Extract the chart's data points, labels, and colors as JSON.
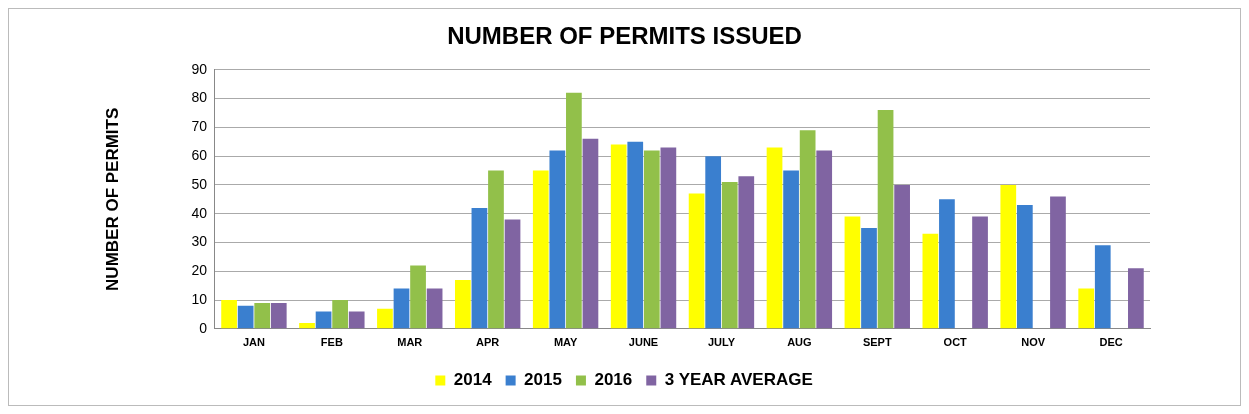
{
  "chart_data": {
    "type": "bar",
    "title": "NUMBER OF PERMITS ISSUED",
    "ylabel": "NUMBER OF PERMITS",
    "categories": [
      "JAN",
      "FEB",
      "MAR",
      "APR",
      "MAY",
      "JUNE",
      "JULY",
      "AUG",
      "SEPT",
      "OCT",
      "NOV",
      "DEC"
    ],
    "series": [
      {
        "name": "2014",
        "color": "#ffff00",
        "values": [
          10,
          2,
          7,
          17,
          55,
          64,
          47,
          63,
          39,
          33,
          50,
          14
        ]
      },
      {
        "name": "2015",
        "color": "#3a7fcf",
        "values": [
          8,
          6,
          14,
          42,
          62,
          65,
          60,
          55,
          35,
          45,
          43,
          29
        ]
      },
      {
        "name": "2016",
        "color": "#92c04a",
        "values": [
          9,
          10,
          22,
          55,
          82,
          62,
          51,
          69,
          76,
          null,
          null,
          null
        ]
      },
      {
        "name": "3 YEAR AVERAGE",
        "color": "#8064a2",
        "values": [
          9,
          6,
          14,
          38,
          66,
          63,
          53,
          62,
          50,
          39,
          46,
          21
        ]
      }
    ],
    "ylim": [
      0,
      90
    ],
    "yticks": [
      0,
      10,
      20,
      30,
      40,
      50,
      60,
      70,
      80,
      90
    ],
    "grid": "y",
    "legend": "bottom"
  }
}
